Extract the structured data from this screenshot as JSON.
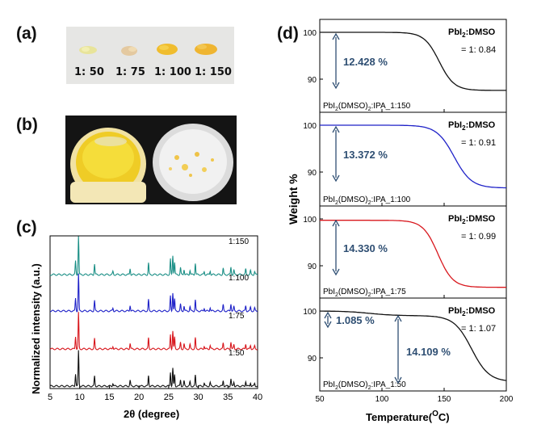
{
  "panels": {
    "a": {
      "label": "(a)",
      "ratios": [
        "1: 50",
        "1: 75",
        "1: 100",
        "1: 150"
      ]
    },
    "b": {
      "label": "(b)"
    },
    "c": {
      "label": "(c)",
      "ylabel": "Normalized intensity (a.u.)",
      "xlabel_pre": "2",
      "xlabel_theta": "θ",
      "xlabel_post": " (degree)",
      "xticks": [
        "5",
        "10",
        "15",
        "20",
        "25",
        "30",
        "35",
        "40"
      ],
      "traces": [
        {
          "name": "1:150",
          "color": "#1b8f86"
        },
        {
          "name": "1:100",
          "color": "#1f22c8"
        },
        {
          "name": "1:75",
          "color": "#d8171d"
        },
        {
          "name": "1:50",
          "color": "#111111"
        }
      ]
    },
    "d": {
      "label": "(d)",
      "ylabel": "Weight %",
      "xlabel": "Temperature(",
      "xlabel_sup": "O",
      "xlabel_end": "C)",
      "xticks": [
        "50",
        "100",
        "150",
        "200"
      ],
      "yticks": [
        "100",
        "90"
      ],
      "header_pre": "PbI",
      "header_sub": "2",
      "header_post": ":DMSO",
      "subpanels": [
        {
          "ratio": "= 1: 0.84",
          "loss": "12.428 %",
          "sample_pre": "PbI",
          "sample_sub1": "2",
          "sample_mid": "(DMSO)",
          "sample_sub2": "2",
          "sample_post": ":IPA_1:150",
          "color": "#111111"
        },
        {
          "ratio": "= 1: 0.91",
          "loss": "13.372 %",
          "sample_pre": "PbI",
          "sample_sub1": "2",
          "sample_mid": "(DMSO)",
          "sample_sub2": "2",
          "sample_post": ":IPA_1:100",
          "color": "#1f22c8"
        },
        {
          "ratio": "= 1: 0.99",
          "loss": "14.330 %",
          "sample_pre": "PbI",
          "sample_sub1": "2",
          "sample_mid": "(DMSO)",
          "sample_sub2": "2",
          "sample_post": ":IPA_1:75",
          "color": "#d8171d"
        },
        {
          "ratio": "= 1: 1.07",
          "loss": "14.109 %",
          "loss2": "1.085 %",
          "sample_pre": "PbI",
          "sample_sub1": "2",
          "sample_mid": "(DMSO)",
          "sample_sub2": "2",
          "sample_post": ":IPA_1:50",
          "color": "#111111"
        }
      ]
    }
  }
}
